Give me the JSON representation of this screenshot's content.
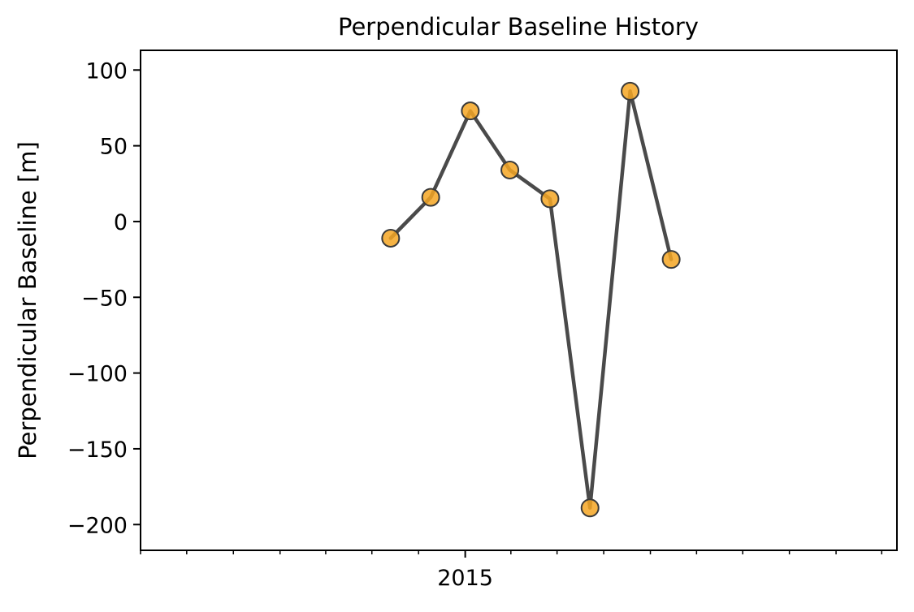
{
  "chart_data": {
    "type": "line",
    "title": "Perpendicular Baseline History",
    "xlabel": "",
    "ylabel": "Perpendicular Baseline [m]",
    "x": [
      "2014-08-07",
      "2014-10-25",
      "2015-01-11",
      "2015-03-30",
      "2015-06-17",
      "2015-09-04",
      "2015-11-22",
      "2016-02-11"
    ],
    "y": [
      -11,
      16,
      73,
      34,
      15,
      -189,
      86,
      -25
    ],
    "xlim": [
      "2013-04-01",
      "2017-05-01"
    ],
    "ylim": [
      -217,
      113
    ],
    "yticks": [
      100,
      50,
      0,
      -50,
      -100,
      -150,
      -200
    ],
    "ytick_labels": [
      "100",
      "50",
      "0",
      "−50",
      "−100",
      "−150",
      "−200"
    ],
    "xticks_major": [
      {
        "date": "2015-01-01",
        "label": "2015"
      }
    ],
    "xticks_minor": [
      "2013-04-01",
      "2013-07-01",
      "2013-10-01",
      "2014-01-01",
      "2014-04-01",
      "2014-07-01",
      "2014-10-01",
      "2015-04-01",
      "2015-07-01",
      "2015-10-01",
      "2016-01-01",
      "2016-04-01",
      "2016-07-01",
      "2016-10-01",
      "2017-01-01",
      "2017-04-01"
    ],
    "grid": false,
    "legend": false,
    "colors": {
      "line": "#404040",
      "marker_fill": "#f5a623",
      "marker_edge": "#3a3a3a",
      "axes": "#000000"
    }
  }
}
